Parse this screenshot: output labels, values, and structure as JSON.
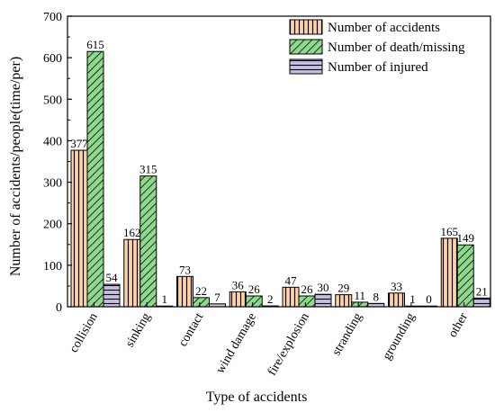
{
  "chart_data": {
    "type": "bar",
    "xlabel": "Type of accidents",
    "ylabel": "Number of accidents/people(time/per)",
    "ylim": [
      0,
      700
    ],
    "yticks": [
      0,
      100,
      200,
      300,
      400,
      500,
      600,
      700
    ],
    "legend_position": "top-right",
    "grid": false,
    "categories": [
      "collision",
      "sinking",
      "contact",
      "wind damage",
      "fire/explosion",
      "stranding",
      "grounding",
      "other"
    ],
    "series": [
      {
        "name": "Number of accidents",
        "values": [
          377,
          162,
          73,
          36,
          47,
          29,
          33,
          165
        ],
        "color": "#fdd2a7",
        "pattern": "vertical-lines"
      },
      {
        "name": "Number of death/missing",
        "values": [
          615,
          315,
          22,
          26,
          26,
          11,
          1,
          149
        ],
        "color": "#8fd98f",
        "pattern": "diagonal-lines"
      },
      {
        "name": "Number of injured",
        "values": [
          54,
          1,
          7,
          2,
          30,
          8,
          0,
          21
        ],
        "color": "#c7bde3",
        "pattern": "horizontal-lines"
      }
    ]
  }
}
